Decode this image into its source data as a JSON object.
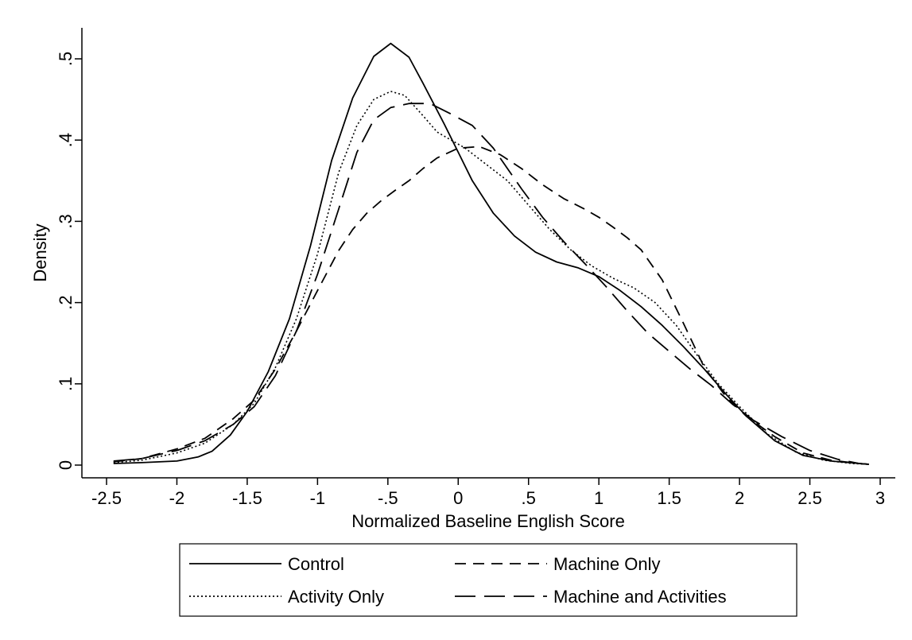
{
  "chart_data": {
    "type": "line",
    "title": "",
    "xlabel": "Normalized Baseline English Score",
    "ylabel": "Density",
    "xlim": [
      -2.55,
      3.1
    ],
    "ylim": [
      -0.012,
      0.54
    ],
    "x_ticks": [
      -2.5,
      -2,
      -1.5,
      -1,
      -0.5,
      0,
      0.5,
      1,
      1.5,
      2,
      2.5,
      3
    ],
    "x_tick_labels": [
      "-2.5",
      "-2",
      "-1.5",
      "-1",
      "-.5",
      "0",
      ".5",
      "1",
      "1.5",
      "2",
      "2.5",
      "3"
    ],
    "y_ticks": [
      0,
      0.1,
      0.2,
      0.3,
      0.4,
      0.5
    ],
    "y_tick_labels": [
      "0",
      ".1",
      ".2",
      ".3",
      ".4",
      ".5"
    ],
    "grid": false,
    "legend_position": "bottom",
    "series": [
      {
        "name": "Control",
        "dash": "solid",
        "x": [
          -2.45,
          -2.25,
          -2.0,
          -1.85,
          -1.75,
          -1.62,
          -1.5,
          -1.35,
          -1.2,
          -1.05,
          -0.9,
          -0.75,
          -0.6,
          -0.48,
          -0.35,
          -0.25,
          -0.1,
          0.0,
          0.1,
          0.25,
          0.4,
          0.55,
          0.7,
          0.85,
          1.0,
          1.15,
          1.3,
          1.45,
          1.6,
          1.75,
          1.9,
          2.05,
          2.25,
          2.45,
          2.65,
          2.85,
          2.92
        ],
        "y": [
          0.002,
          0.003,
          0.005,
          0.01,
          0.017,
          0.037,
          0.066,
          0.115,
          0.18,
          0.27,
          0.375,
          0.452,
          0.503,
          0.519,
          0.502,
          0.47,
          0.42,
          0.385,
          0.35,
          0.31,
          0.282,
          0.262,
          0.25,
          0.243,
          0.232,
          0.215,
          0.195,
          0.172,
          0.146,
          0.118,
          0.088,
          0.06,
          0.03,
          0.012,
          0.005,
          0.002,
          0.001
        ]
      },
      {
        "name": "Machine Only",
        "dash": "medium",
        "x": [
          -2.45,
          -2.25,
          -2.0,
          -1.8,
          -1.6,
          -1.45,
          -1.3,
          -1.15,
          -1.0,
          -0.85,
          -0.75,
          -0.65,
          -0.55,
          -0.45,
          -0.35,
          -0.25,
          -0.15,
          0.0,
          0.15,
          0.3,
          0.45,
          0.6,
          0.75,
          0.9,
          1.0,
          1.1,
          1.2,
          1.3,
          1.45,
          1.6,
          1.75,
          1.9,
          2.05,
          2.25,
          2.45,
          2.65,
          2.85,
          2.92
        ],
        "y": [
          0.004,
          0.008,
          0.02,
          0.033,
          0.057,
          0.08,
          0.118,
          0.165,
          0.215,
          0.264,
          0.29,
          0.31,
          0.325,
          0.338,
          0.35,
          0.365,
          0.378,
          0.39,
          0.392,
          0.382,
          0.365,
          0.345,
          0.328,
          0.315,
          0.305,
          0.293,
          0.28,
          0.265,
          0.228,
          0.175,
          0.12,
          0.085,
          0.06,
          0.035,
          0.015,
          0.006,
          0.002,
          0.001
        ]
      },
      {
        "name": "Activity Only",
        "dash": "dotted",
        "x": [
          -2.45,
          -2.25,
          -2.0,
          -1.8,
          -1.6,
          -1.45,
          -1.3,
          -1.15,
          -1.0,
          -0.85,
          -0.72,
          -0.6,
          -0.48,
          -0.38,
          -0.25,
          -0.15,
          -0.05,
          0.05,
          0.2,
          0.35,
          0.5,
          0.65,
          0.8,
          0.95,
          1.1,
          1.25,
          1.4,
          1.55,
          1.7,
          1.85,
          2.0,
          2.2,
          2.4,
          2.6,
          2.8,
          2.92
        ],
        "y": [
          0.003,
          0.006,
          0.015,
          0.027,
          0.05,
          0.076,
          0.12,
          0.18,
          0.26,
          0.36,
          0.418,
          0.45,
          0.46,
          0.455,
          0.43,
          0.41,
          0.4,
          0.39,
          0.37,
          0.35,
          0.32,
          0.29,
          0.265,
          0.245,
          0.23,
          0.218,
          0.2,
          0.172,
          0.135,
          0.1,
          0.072,
          0.038,
          0.016,
          0.006,
          0.002,
          0.001
        ]
      },
      {
        "name": "Machine and Activities",
        "dash": "long",
        "x": [
          -2.45,
          -2.25,
          -2.0,
          -1.8,
          -1.6,
          -1.45,
          -1.3,
          -1.15,
          -1.0,
          -0.85,
          -0.72,
          -0.6,
          -0.48,
          -0.35,
          -0.2,
          -0.05,
          0.1,
          0.25,
          0.35,
          0.45,
          0.6,
          0.75,
          0.9,
          1.05,
          1.2,
          1.35,
          1.5,
          1.65,
          1.8,
          1.95,
          2.1,
          2.3,
          2.5,
          2.7,
          2.85,
          2.92
        ],
        "y": [
          0.005,
          0.008,
          0.018,
          0.03,
          0.05,
          0.072,
          0.11,
          0.165,
          0.235,
          0.315,
          0.385,
          0.425,
          0.44,
          0.445,
          0.445,
          0.432,
          0.418,
          0.39,
          0.365,
          0.34,
          0.305,
          0.275,
          0.248,
          0.22,
          0.19,
          0.162,
          0.14,
          0.118,
          0.098,
          0.075,
          0.055,
          0.035,
          0.018,
          0.007,
          0.002,
          0.001
        ]
      }
    ]
  }
}
